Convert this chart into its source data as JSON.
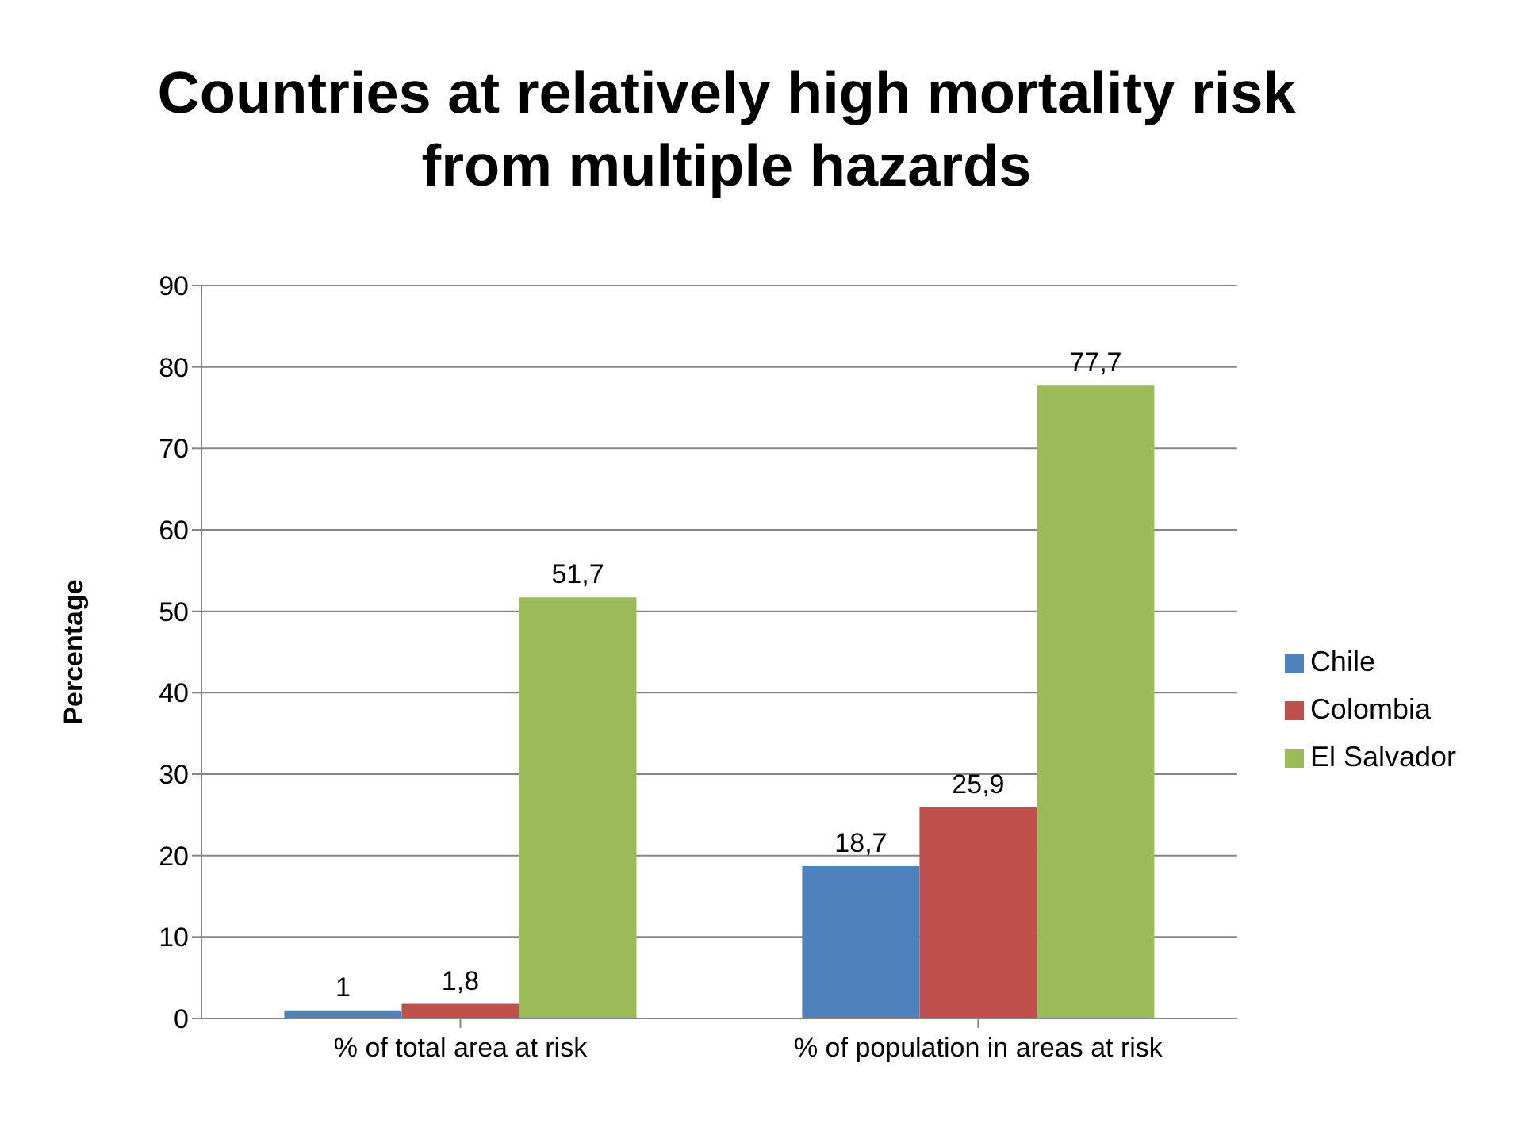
{
  "chart_data": {
    "type": "bar",
    "title": "Countries at relatively high mortality risk from multiple hazards",
    "ylabel": "Percentage",
    "categories": [
      "% of total area at risk",
      "% of population in areas at risk"
    ],
    "series": [
      {
        "name": "Chile",
        "color": "#4f81bd",
        "values": [
          1,
          18.7
        ],
        "value_labels": [
          "1",
          "18,7"
        ]
      },
      {
        "name": "Colombia",
        "color": "#c0504d",
        "values": [
          1.8,
          25.9
        ],
        "value_labels": [
          "1,8",
          "25,9"
        ]
      },
      {
        "name": "El Salvador",
        "color": "#9bbb59",
        "values": [
          51.7,
          77.7
        ],
        "value_labels": [
          "51,7",
          "77,7"
        ]
      }
    ],
    "ylim": [
      0,
      90
    ],
    "yticks": [
      0,
      10,
      20,
      30,
      40,
      50,
      60,
      70,
      80,
      90
    ],
    "grid": "y",
    "legend": "right"
  }
}
